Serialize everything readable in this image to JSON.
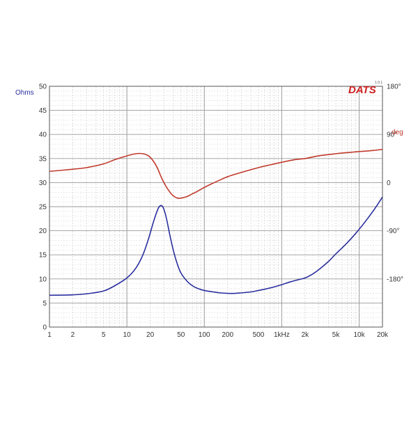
{
  "chart_data": {
    "type": "line",
    "x_scale": "log",
    "xlim": [
      1,
      20000
    ],
    "ylim": [
      0,
      50
    ],
    "y2lim": [
      -270,
      180
    ],
    "y_label": "Ohms",
    "y2_label": "deg",
    "x_tick_labels": [
      "1",
      "2",
      "5",
      "10",
      "20",
      "50",
      "100",
      "200",
      "500",
      "1kHz",
      "2k",
      "5k",
      "10k",
      "20k"
    ],
    "x_tick_values": [
      1,
      2,
      5,
      10,
      20,
      50,
      100,
      200,
      500,
      1000,
      2000,
      5000,
      10000,
      20000
    ],
    "y_ticks": [
      0,
      5,
      10,
      15,
      20,
      25,
      30,
      35,
      40,
      45,
      50
    ],
    "y2_tick_labels": [
      "180°",
      "90°",
      "0",
      "-90°",
      "-180°"
    ],
    "y2_tick_values": [
      180,
      90,
      0,
      -90,
      -180
    ],
    "grid": true,
    "logo": "DATS",
    "logo_version": "1.0.1",
    "series": [
      {
        "axis": "left",
        "color": "#2a2f9e",
        "x": [
          1,
          2,
          3,
          5,
          7,
          10,
          13,
          16,
          19,
          22,
          25,
          27,
          29,
          31,
          33,
          36,
          40,
          45,
          50,
          60,
          70,
          80,
          100,
          130,
          160,
          200,
          250,
          300,
          400,
          500,
          700,
          1000,
          1300,
          1700,
          2000,
          2500,
          3000,
          4000,
          5000,
          7000,
          10000,
          15000,
          20000
        ],
        "values": [
          6.6,
          6.7,
          6.9,
          7.5,
          8.6,
          10.2,
          12.2,
          14.9,
          18.3,
          21.8,
          24.4,
          25.2,
          25.0,
          23.8,
          22.0,
          19.0,
          15.8,
          13.0,
          11.2,
          9.5,
          8.6,
          8.1,
          7.6,
          7.3,
          7.1,
          7.0,
          7.0,
          7.1,
          7.3,
          7.6,
          8.1,
          8.8,
          9.4,
          9.9,
          10.2,
          11.0,
          11.9,
          13.6,
          15.2,
          17.5,
          20.3,
          24.0,
          27.0
        ]
      },
      {
        "axis": "right",
        "color": "#c0392b",
        "x": [
          1,
          2,
          3,
          5,
          7,
          10,
          13,
          16,
          19,
          22,
          25,
          28,
          32,
          36,
          40,
          45,
          50,
          60,
          70,
          80,
          100,
          130,
          160,
          200,
          300,
          500,
          700,
          1000,
          1500,
          2000,
          3000,
          5000,
          7000,
          10000,
          15000,
          20000
        ],
        "values": [
          21,
          25,
          28,
          35,
          43,
          50,
          54,
          54,
          50,
          40,
          26,
          9,
          -7,
          -18,
          -25,
          -29,
          -29,
          -26,
          -21,
          -17,
          -9,
          -1,
          5,
          11,
          19,
          28,
          33,
          38,
          43,
          45,
          50,
          54,
          56,
          58,
          60,
          62
        ]
      }
    ]
  }
}
